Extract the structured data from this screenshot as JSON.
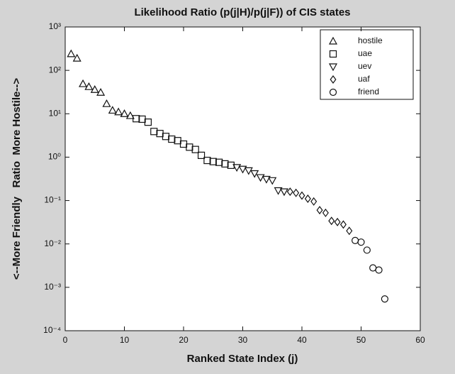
{
  "chart_data": {
    "type": "scatter",
    "title": "Likelihood Ratio (p(j|H)/p(j|F)) of CIS states",
    "xlabel": "Ranked State Index (j)",
    "ylabel": "<--More Friendly   Ratio  More Hostile-->",
    "xlim": [
      0,
      60
    ],
    "xticks": [
      0,
      10,
      20,
      30,
      40,
      50,
      60
    ],
    "ylim": [
      0.0001,
      1000
    ],
    "yscale": "log",
    "yticks": [
      {
        "value": 0.0001,
        "label": "10⁻⁴"
      },
      {
        "value": 0.001,
        "label": "10⁻³"
      },
      {
        "value": 0.01,
        "label": "10⁻²"
      },
      {
        "value": 0.1,
        "label": "10⁻¹"
      },
      {
        "value": 1,
        "label": "10⁰"
      },
      {
        "value": 10,
        "label": "10¹"
      },
      {
        "value": 100,
        "label": "10²"
      },
      {
        "value": 1000,
        "label": "10³"
      }
    ],
    "legend": "upper right",
    "series": [
      {
        "name": "hostile",
        "marker": "triangle-up",
        "color": "#111111",
        "x": [
          1,
          2,
          3,
          4,
          5,
          6,
          7,
          8,
          9,
          10,
          11
        ],
        "values": [
          240,
          190,
          49,
          42,
          36,
          31,
          17,
          12,
          11,
          10,
          9
        ]
      },
      {
        "name": "uae",
        "marker": "square",
        "color": "#111111",
        "x": [
          12,
          13,
          14,
          15,
          16,
          17,
          18,
          19,
          20,
          21,
          22,
          23,
          24,
          25,
          26,
          27,
          28
        ],
        "values": [
          7.7,
          7.5,
          6.4,
          3.9,
          3.5,
          3.0,
          2.6,
          2.4,
          2.0,
          1.7,
          1.5,
          1.1,
          0.84,
          0.79,
          0.76,
          0.7,
          0.65
        ]
      },
      {
        "name": "uev",
        "marker": "triangle-down",
        "color": "#111111",
        "x": [
          29,
          30,
          31,
          32,
          33,
          34,
          35,
          36,
          37
        ],
        "values": [
          0.58,
          0.53,
          0.49,
          0.42,
          0.34,
          0.31,
          0.29,
          0.17,
          0.16
        ]
      },
      {
        "name": "uaf",
        "marker": "diamond",
        "color": "#111111",
        "x": [
          38,
          39,
          40,
          41,
          42,
          43,
          44,
          45,
          46,
          47,
          48
        ],
        "values": [
          0.16,
          0.15,
          0.13,
          0.11,
          0.095,
          0.06,
          0.052,
          0.034,
          0.032,
          0.028,
          0.02
        ]
      },
      {
        "name": "friend",
        "marker": "circle",
        "color": "#111111",
        "x": [
          49,
          50,
          51,
          52,
          53,
          54
        ],
        "values": [
          0.012,
          0.011,
          0.0072,
          0.0028,
          0.0025,
          0.00054
        ]
      }
    ]
  }
}
